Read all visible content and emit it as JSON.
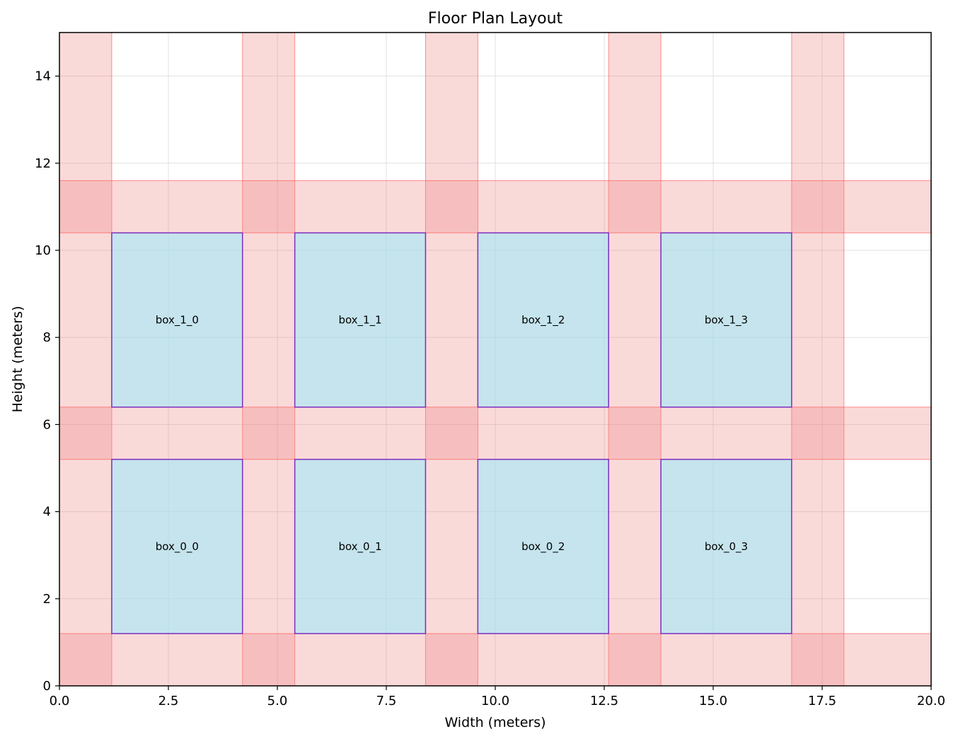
{
  "chart_data": {
    "type": "floor-plan",
    "title": "Floor Plan Layout",
    "xlabel": "Width (meters)",
    "ylabel": "Height (meters)",
    "xlim": [
      0,
      20
    ],
    "ylim": [
      0,
      15
    ],
    "grid": true,
    "x_ticks": [
      0.0,
      2.5,
      5.0,
      7.5,
      10.0,
      12.5,
      15.0,
      17.5,
      20.0
    ],
    "x_tick_labels": [
      "0.0",
      "2.5",
      "5.0",
      "7.5",
      "10.0",
      "12.5",
      "15.0",
      "17.5",
      "20.0"
    ],
    "y_ticks": [
      0,
      2,
      4,
      6,
      8,
      10,
      12,
      14
    ],
    "y_tick_labels": [
      "0",
      "2",
      "4",
      "6",
      "8",
      "10",
      "12",
      "14"
    ],
    "colors": {
      "box_fill": "#add8e6",
      "box_edge": "#7b2fbe",
      "aisle_fill": "#f08080",
      "aisle_edge": "#ff4d4d",
      "grid": "#d9d9d9"
    },
    "aisles": [
      {
        "x": 0.0,
        "y": 0.0,
        "w": 1.2,
        "h": 15.0
      },
      {
        "x": 4.2,
        "y": 0.0,
        "w": 1.2,
        "h": 15.0
      },
      {
        "x": 8.4,
        "y": 0.0,
        "w": 1.2,
        "h": 15.0
      },
      {
        "x": 12.6,
        "y": 0.0,
        "w": 1.2,
        "h": 15.0
      },
      {
        "x": 16.8,
        "y": 0.0,
        "w": 1.2,
        "h": 15.0
      },
      {
        "x": 0.0,
        "y": 0.0,
        "w": 20.0,
        "h": 1.2
      },
      {
        "x": 0.0,
        "y": 5.2,
        "w": 20.0,
        "h": 1.2
      },
      {
        "x": 0.0,
        "y": 10.4,
        "w": 20.0,
        "h": 1.2
      }
    ],
    "boxes": [
      {
        "label": "box_0_0",
        "x": 1.2,
        "y": 1.2,
        "w": 3.0,
        "h": 4.0
      },
      {
        "label": "box_0_1",
        "x": 5.4,
        "y": 1.2,
        "w": 3.0,
        "h": 4.0
      },
      {
        "label": "box_0_2",
        "x": 9.6,
        "y": 1.2,
        "w": 3.0,
        "h": 4.0
      },
      {
        "label": "box_0_3",
        "x": 13.8,
        "y": 1.2,
        "w": 3.0,
        "h": 4.0
      },
      {
        "label": "box_1_0",
        "x": 1.2,
        "y": 6.4,
        "w": 3.0,
        "h": 4.0
      },
      {
        "label": "box_1_1",
        "x": 5.4,
        "y": 6.4,
        "w": 3.0,
        "h": 4.0
      },
      {
        "label": "box_1_2",
        "x": 9.6,
        "y": 6.4,
        "w": 3.0,
        "h": 4.0
      },
      {
        "label": "box_1_3",
        "x": 13.8,
        "y": 6.4,
        "w": 3.0,
        "h": 4.0
      }
    ]
  }
}
